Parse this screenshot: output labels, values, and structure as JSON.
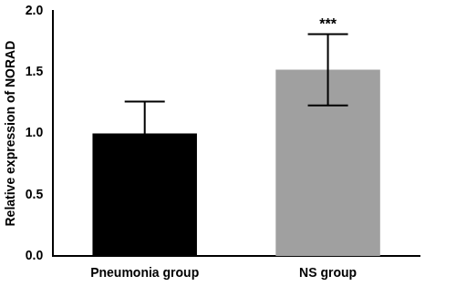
{
  "chart_data": {
    "type": "bar",
    "y_label": "Relative expression of NORAD",
    "categories": [
      "Pneumonia group",
      "NS group"
    ],
    "values": [
      1.0,
      1.52
    ],
    "errors": [
      0.26,
      0.29
    ],
    "colors": [
      "#000000",
      "#a0a0a0"
    ],
    "ylim": [
      0,
      2
    ],
    "yticks": [
      {
        "value": 0,
        "label": "0.0"
      },
      0.5,
      {
        "value": 1,
        "label": "1.0"
      },
      1.5,
      {
        "value": 2,
        "label": "2.0"
      }
    ],
    "grid": false,
    "annotations": [
      {
        "category": "NS group",
        "text": "***"
      }
    ]
  }
}
